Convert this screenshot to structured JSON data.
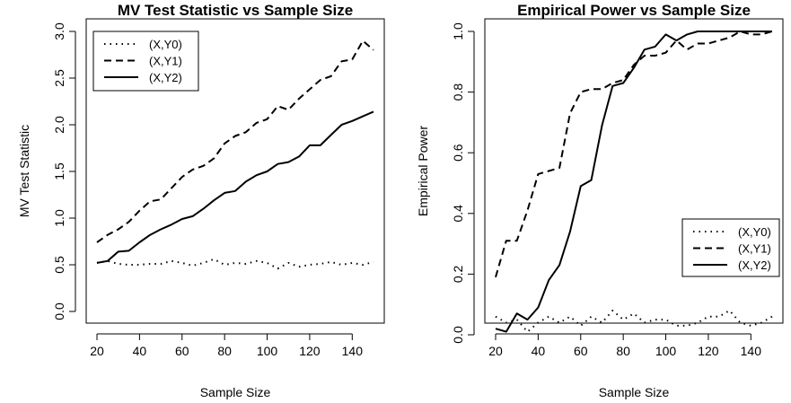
{
  "chart_data": [
    {
      "type": "line",
      "title": "MV Test Statistic vs Sample Size",
      "xlabel": "Sample Size",
      "ylabel": "MV Test Statistic",
      "xlim": [
        20,
        150
      ],
      "ylim": [
        0.0,
        3.0
      ],
      "x_ticks": [
        "20",
        "40",
        "60",
        "80",
        "100",
        "120",
        "140"
      ],
      "y_ticks": [
        "0.0",
        "0.5",
        "1.0",
        "1.5",
        "2.0",
        "2.5",
        "3.0"
      ],
      "legend_position": "top-left",
      "x": [
        20,
        25,
        30,
        35,
        40,
        45,
        50,
        55,
        60,
        65,
        70,
        75,
        80,
        85,
        90,
        95,
        100,
        105,
        110,
        115,
        120,
        125,
        130,
        135,
        140,
        145,
        150
      ],
      "series": [
        {
          "name": "(X,Y0)",
          "style": "dotted",
          "values": [
            0.52,
            0.54,
            0.51,
            0.5,
            0.5,
            0.51,
            0.51,
            0.54,
            0.52,
            0.49,
            0.52,
            0.56,
            0.5,
            0.52,
            0.51,
            0.54,
            0.52,
            0.46,
            0.52,
            0.48,
            0.5,
            0.51,
            0.53,
            0.5,
            0.52,
            0.5,
            0.53
          ]
        },
        {
          "name": "(X,Y1)",
          "style": "dashed",
          "values": [
            0.74,
            0.82,
            0.88,
            0.96,
            1.08,
            1.18,
            1.2,
            1.32,
            1.44,
            1.52,
            1.56,
            1.64,
            1.8,
            1.88,
            1.92,
            2.02,
            2.06,
            2.2,
            2.16,
            2.28,
            2.38,
            2.48,
            2.52,
            2.68,
            2.7,
            2.9,
            2.8
          ]
        },
        {
          "name": "(X,Y2)",
          "style": "solid",
          "values": [
            0.52,
            0.54,
            0.64,
            0.65,
            0.74,
            0.82,
            0.88,
            0.93,
            0.99,
            1.02,
            1.1,
            1.19,
            1.27,
            1.29,
            1.39,
            1.46,
            1.5,
            1.58,
            1.6,
            1.66,
            1.78,
            1.78,
            1.89,
            2.0,
            2.04,
            2.09,
            2.14
          ]
        }
      ]
    },
    {
      "type": "line",
      "title": "Empirical Power vs Sample Size",
      "xlabel": "Sample Size",
      "ylabel": "Empirical Power",
      "xlim": [
        20,
        150
      ],
      "ylim": [
        0.0,
        1.0
      ],
      "x_ticks": [
        "20",
        "40",
        "60",
        "80",
        "100",
        "120",
        "140"
      ],
      "y_ticks": [
        "0.0",
        "0.2",
        "0.4",
        "0.6",
        "0.8",
        "1.0"
      ],
      "legend_position": "bottom-right",
      "x": [
        20,
        25,
        30,
        35,
        40,
        45,
        50,
        55,
        60,
        65,
        70,
        75,
        80,
        85,
        90,
        95,
        100,
        105,
        110,
        115,
        120,
        125,
        130,
        135,
        140,
        145,
        150
      ],
      "series": [
        {
          "name": "(X,Y0)",
          "style": "dotted",
          "values": [
            0.06,
            0.04,
            0.05,
            0.01,
            0.04,
            0.06,
            0.04,
            0.06,
            0.03,
            0.06,
            0.04,
            0.08,
            0.05,
            0.07,
            0.04,
            0.05,
            0.05,
            0.03,
            0.03,
            0.04,
            0.06,
            0.06,
            0.08,
            0.04,
            0.03,
            0.04,
            0.06
          ]
        },
        {
          "name": "(X,Y1)",
          "style": "dashed",
          "values": [
            0.19,
            0.31,
            0.31,
            0.41,
            0.53,
            0.54,
            0.55,
            0.73,
            0.8,
            0.81,
            0.81,
            0.83,
            0.84,
            0.89,
            0.92,
            0.92,
            0.93,
            0.97,
            0.94,
            0.96,
            0.96,
            0.97,
            0.98,
            1.0,
            0.99,
            0.99,
            1.0
          ]
        },
        {
          "name": "(X,Y2)",
          "style": "solid",
          "values": [
            0.02,
            0.01,
            0.07,
            0.05,
            0.09,
            0.18,
            0.23,
            0.34,
            0.49,
            0.51,
            0.69,
            0.82,
            0.83,
            0.88,
            0.94,
            0.95,
            0.99,
            0.97,
            0.99,
            1.0,
            1.0,
            1.0,
            1.0,
            1.0,
            1.0,
            1.0,
            1.0
          ]
        }
      ]
    }
  ]
}
